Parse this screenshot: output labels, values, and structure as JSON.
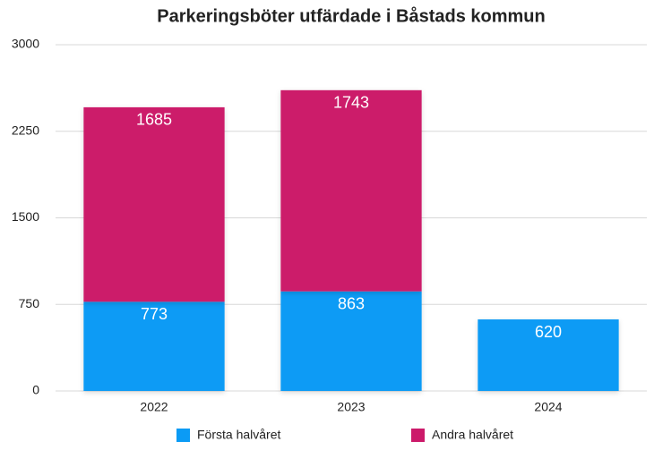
{
  "chart_data": {
    "type": "stacked_bar",
    "title": "Parkeringsböter utfärdade i Båstads kommun",
    "categories": [
      "2022",
      "2023",
      "2024"
    ],
    "series": [
      {
        "name": "Första halvåret",
        "color": "#0b9bf5",
        "values": [
          773,
          863,
          620
        ]
      },
      {
        "name": "Andra halvåret",
        "color": "#cc1a6a",
        "values": [
          1685,
          1743,
          null
        ]
      }
    ],
    "ylim": [
      0,
      3000
    ],
    "yticks": [
      0,
      750,
      1500,
      2250,
      3000
    ],
    "grid": true,
    "legend": "bottom"
  }
}
